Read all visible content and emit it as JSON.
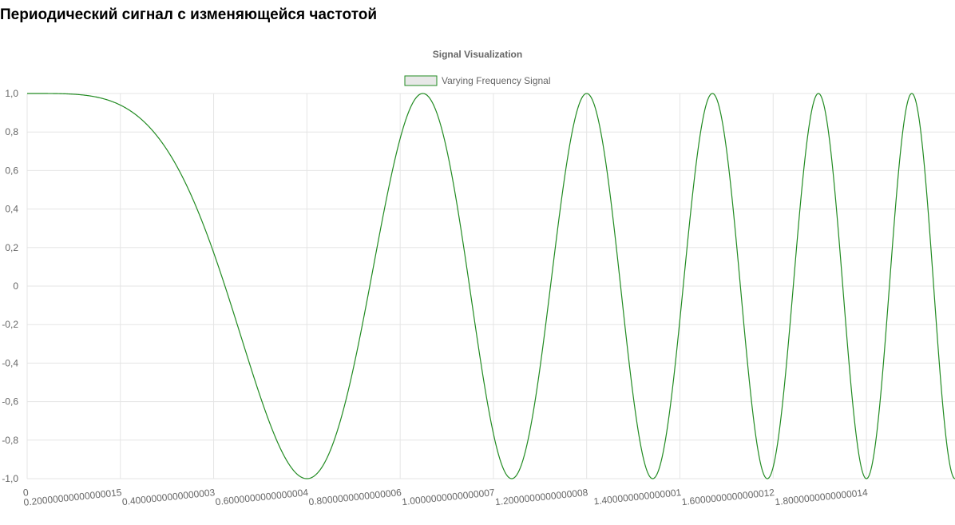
{
  "page": {
    "title": "Периодический сигнал с изменяющейся частотой"
  },
  "chart_data": {
    "type": "line",
    "title": "Signal Visualization",
    "series": [
      {
        "name": "Varying Frequency Signal",
        "color": "#228b22",
        "function": "cos(pi * (x / 0.6)^2)",
        "x_start": 0,
        "x_end": 1.99,
        "x_step": 0.001
      }
    ],
    "legend": {
      "position": "top",
      "label": "Varying Frequency Signal",
      "box_fill": "#e8e8e8",
      "box_stroke": "#228b22"
    },
    "xlim": [
      0,
      1.99
    ],
    "ylim": [
      -1.0,
      1.0
    ],
    "grid": true,
    "y_ticks": [
      {
        "value": 1.0,
        "label": "1,0"
      },
      {
        "value": 0.8,
        "label": "0,8"
      },
      {
        "value": 0.6,
        "label": "0,6"
      },
      {
        "value": 0.4,
        "label": "0,4"
      },
      {
        "value": 0.2,
        "label": "0,2"
      },
      {
        "value": 0.0,
        "label": "0"
      },
      {
        "value": -0.2,
        "label": "-0,2"
      },
      {
        "value": -0.4,
        "label": "-0,4"
      },
      {
        "value": -0.6,
        "label": "-0,6"
      },
      {
        "value": -0.8,
        "label": "-0,8"
      },
      {
        "value": -1.0,
        "label": "-1,0"
      }
    ],
    "x_ticks": [
      {
        "value": 0,
        "label": "0"
      },
      {
        "value": 0.2,
        "label": "0.20000000000000015"
      },
      {
        "value": 0.4,
        "label": "0.4000000000000003"
      },
      {
        "value": 0.6,
        "label": "0.6000000000000004"
      },
      {
        "value": 0.8,
        "label": "0.8000000000000006"
      },
      {
        "value": 1.0,
        "label": "1.0000000000000007"
      },
      {
        "value": 1.2,
        "label": "1.2000000000000008"
      },
      {
        "value": 1.4,
        "label": "1.400000000000001"
      },
      {
        "value": 1.6,
        "label": "1.6000000000000012"
      },
      {
        "value": 1.8,
        "label": "1.8000000000000014"
      }
    ]
  }
}
